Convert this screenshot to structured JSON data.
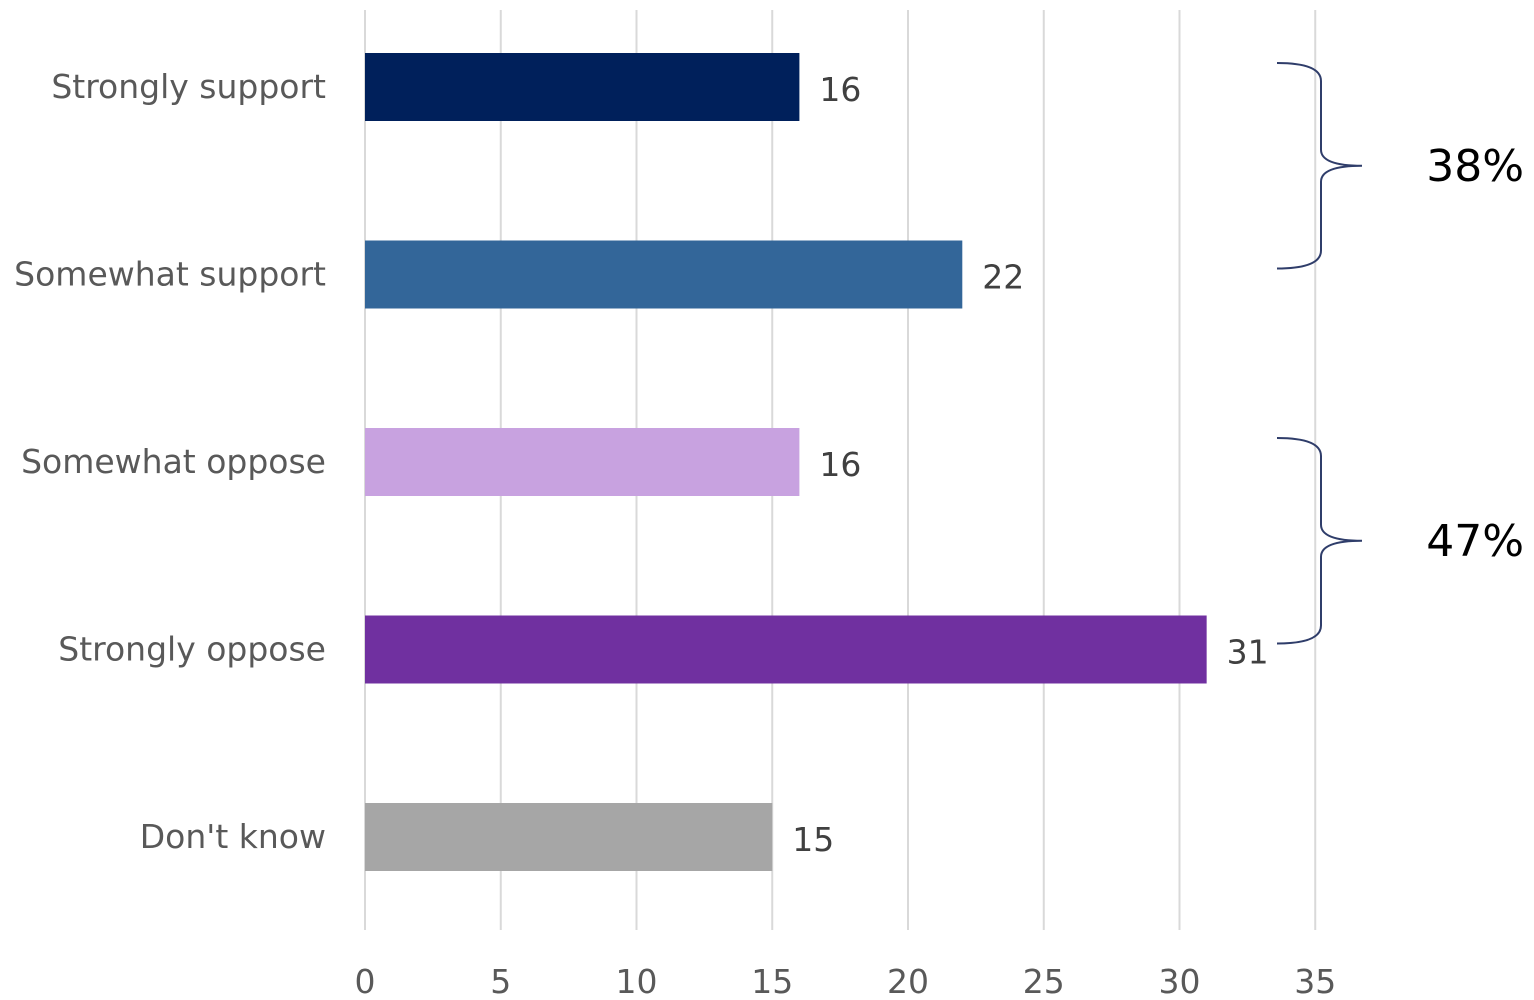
{
  "chart_data": {
    "type": "bar",
    "orientation": "horizontal",
    "categories": [
      "Strongly support",
      "Somewhat support",
      "Somewhat oppose",
      "Strongly oppose",
      "Don't know"
    ],
    "values": [
      16,
      22,
      16,
      31,
      15
    ],
    "colors": [
      "#00205b",
      "#336699",
      "#c8a2e0",
      "#7030a0",
      "#a6a6a6"
    ],
    "xlim": [
      0,
      35
    ],
    "xticks": [
      0,
      5,
      10,
      15,
      20,
      25,
      30,
      35
    ],
    "grid": "vertical",
    "legend": "none",
    "annotations": [
      {
        "label": "38%",
        "spans": [
          "Strongly support",
          "Somewhat support"
        ]
      },
      {
        "label": "47%",
        "spans": [
          "Somewhat oppose",
          "Strongly oppose"
        ]
      }
    ]
  }
}
